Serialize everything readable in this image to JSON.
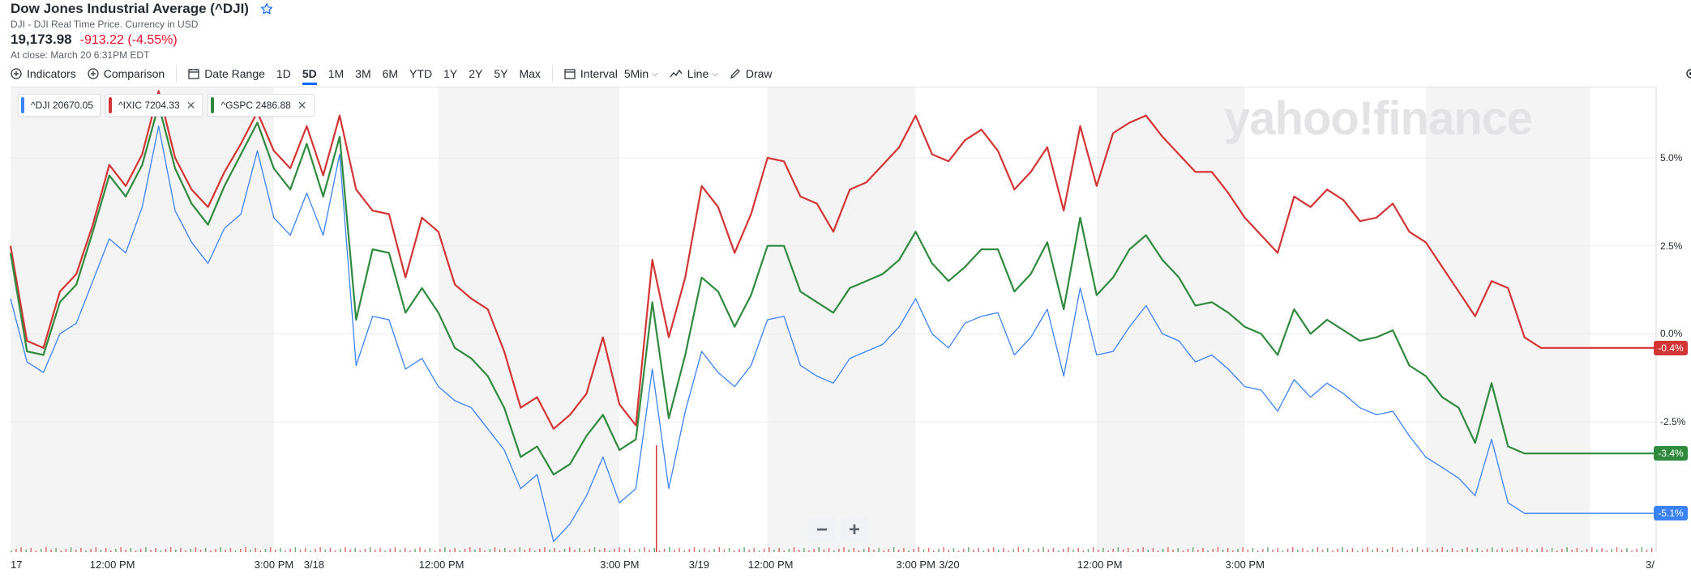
{
  "quote": {
    "title": "Dow Jones Industrial Average (^DJI)",
    "subtitle": "DJI - DJI Real Time Price. Currency in USD",
    "price": "19,173.98",
    "change": "-913.22 (-4.55%)",
    "close_note": "At close: March 20 6:31PM EDT"
  },
  "toolbar": {
    "indicators": "Indicators",
    "comparison": "Comparison",
    "date_range": "Date Range",
    "ranges": [
      "1D",
      "5D",
      "1M",
      "3M",
      "6M",
      "YTD",
      "1Y",
      "2Y",
      "5Y",
      "Max"
    ],
    "active_range": "5D",
    "interval_label": "Interval",
    "interval_value": "5Min",
    "chart_type": "Line",
    "draw": "Draw"
  },
  "legend": [
    {
      "label": "^DJI 20670.05",
      "color": "#3b82f6",
      "removable": false
    },
    {
      "label": "^IXIC 7204.33",
      "color": "#d33434",
      "removable": true
    },
    {
      "label": "^GSPC 2486.88",
      "color": "#2f8a3e",
      "removable": true
    }
  ],
  "watermark": "yahoo!finance",
  "zoom": {
    "minus": "−",
    "plus": "+"
  },
  "chart_data": {
    "type": "line",
    "x_labels": [
      "17",
      "12:00 PM",
      "3:00 PM",
      "3/18",
      "12:00 PM",
      "3:00 PM",
      "3/19",
      "12:00 PM",
      "3:00 PM",
      "3/20",
      "12:00 PM",
      "3:00 PM",
      "3/"
    ],
    "y_ticks": [
      "5.0%",
      "2.5%",
      "0.0%",
      "-2.5%"
    ],
    "ylim": [
      -6.2,
      7.0
    ],
    "shaded_sessions": [
      [
        -0.3,
        0.5
      ],
      [
        1.0,
        1.55
      ],
      [
        2.0,
        2.45
      ],
      [
        3.0,
        3.45
      ],
      [
        4.0,
        4.5
      ]
    ],
    "series": [
      {
        "name": "^IXIC",
        "color": "#d33434",
        "end_label": "-0.4%",
        "x": [
          -0.3,
          -0.25,
          -0.2,
          -0.15,
          -0.1,
          -0.05,
          0,
          0.05,
          0.1,
          0.15,
          0.2,
          0.25,
          0.3,
          0.35,
          0.4,
          0.45,
          0.5,
          0.55,
          0.6,
          0.65,
          0.7,
          0.75,
          0.8,
          0.85,
          0.9,
          0.95,
          1.0,
          1.05,
          1.1,
          1.15,
          1.2,
          1.25,
          1.3,
          1.35,
          1.4,
          1.45,
          1.5,
          1.55,
          1.6,
          1.65,
          1.7,
          1.75,
          1.8,
          1.85,
          1.9,
          1.95,
          2.0,
          2.05,
          2.1,
          2.15,
          2.2,
          2.25,
          2.3,
          2.35,
          2.4,
          2.45,
          2.5,
          2.55,
          2.6,
          2.65,
          2.7,
          2.75,
          2.8,
          2.85,
          2.9,
          2.95,
          3.0,
          3.05,
          3.1,
          3.15,
          3.2,
          3.25,
          3.3,
          3.35,
          3.4,
          3.45,
          3.5,
          3.55,
          3.6,
          3.65,
          3.7,
          3.75,
          3.8,
          3.85,
          3.9,
          3.95,
          4.0,
          4.05,
          4.1,
          4.15,
          4.2,
          4.25,
          4.3,
          4.35,
          4.4,
          4.45,
          4.5,
          4.55,
          4.6,
          4.65,
          4.7
        ],
        "y": [
          2.5,
          -0.2,
          -0.4,
          1.2,
          1.7,
          3.1,
          4.8,
          4.2,
          5.1,
          6.9,
          5.0,
          4.1,
          3.6,
          4.6,
          5.4,
          6.3,
          5.2,
          4.7,
          5.9,
          4.5,
          6.2,
          4.1,
          3.5,
          3.4,
          1.6,
          3.3,
          2.9,
          1.4,
          1.0,
          0.7,
          -0.5,
          -2.1,
          -1.8,
          -2.7,
          -2.3,
          -1.7,
          -0.1,
          -2.0,
          -2.6,
          2.1,
          -0.1,
          1.6,
          4.2,
          3.6,
          2.3,
          3.4,
          5.0,
          4.9,
          3.9,
          3.7,
          2.9,
          4.1,
          4.3,
          4.8,
          5.3,
          6.2,
          5.1,
          4.9,
          5.5,
          5.8,
          5.2,
          4.1,
          4.6,
          5.3,
          3.5,
          5.9,
          4.2,
          5.7,
          6.0,
          6.2,
          5.6,
          5.1,
          4.6,
          4.6,
          4.0,
          3.3,
          2.8,
          2.3,
          3.9,
          3.6,
          4.1,
          3.8,
          3.2,
          3.3,
          3.7,
          2.9,
          2.6,
          1.9,
          1.2,
          0.5,
          1.5,
          1.3,
          -0.1,
          -0.4,
          -0.4,
          -0.4,
          -0.4,
          -0.4,
          -0.4,
          -0.4,
          -0.4
        ],
        "y_note": "approximate"
      },
      {
        "name": "^GSPC",
        "color": "#2f8a3e",
        "end_label": "-3.4%",
        "x": [
          -0.3,
          -0.25,
          -0.2,
          -0.15,
          -0.1,
          -0.05,
          0,
          0.05,
          0.1,
          0.15,
          0.2,
          0.25,
          0.3,
          0.35,
          0.4,
          0.45,
          0.5,
          0.55,
          0.6,
          0.65,
          0.7,
          0.75,
          0.8,
          0.85,
          0.9,
          0.95,
          1.0,
          1.05,
          1.1,
          1.15,
          1.2,
          1.25,
          1.3,
          1.35,
          1.4,
          1.45,
          1.5,
          1.55,
          1.6,
          1.65,
          1.7,
          1.75,
          1.8,
          1.85,
          1.9,
          1.95,
          2.0,
          2.05,
          2.1,
          2.15,
          2.2,
          2.25,
          2.3,
          2.35,
          2.4,
          2.45,
          2.5,
          2.55,
          2.6,
          2.65,
          2.7,
          2.75,
          2.8,
          2.85,
          2.9,
          2.95,
          3.0,
          3.05,
          3.1,
          3.15,
          3.2,
          3.25,
          3.3,
          3.35,
          3.4,
          3.45,
          3.5,
          3.55,
          3.6,
          3.65,
          3.7,
          3.75,
          3.8,
          3.85,
          3.9,
          3.95,
          4.0,
          4.05,
          4.1,
          4.15,
          4.2,
          4.25,
          4.3,
          4.35,
          4.4,
          4.45,
          4.5,
          4.55,
          4.6,
          4.65,
          4.7
        ],
        "y": [
          2.3,
          -0.5,
          -0.6,
          0.9,
          1.4,
          2.9,
          4.5,
          3.9,
          4.8,
          6.5,
          4.7,
          3.7,
          3.1,
          4.2,
          5.1,
          6.0,
          4.7,
          4.1,
          5.4,
          3.9,
          5.6,
          0.4,
          2.4,
          2.3,
          0.6,
          1.3,
          0.6,
          -0.4,
          -0.7,
          -1.2,
          -2.1,
          -3.5,
          -3.2,
          -4.0,
          -3.7,
          -2.9,
          -2.3,
          -3.3,
          -3.0,
          0.9,
          -2.4,
          -0.6,
          1.6,
          1.2,
          0.2,
          1.1,
          2.5,
          2.5,
          1.2,
          0.9,
          0.6,
          1.3,
          1.5,
          1.7,
          2.1,
          2.9,
          2.0,
          1.5,
          1.9,
          2.4,
          2.4,
          1.2,
          1.7,
          2.6,
          0.7,
          3.3,
          1.1,
          1.6,
          2.4,
          2.8,
          2.1,
          1.6,
          0.8,
          0.9,
          0.6,
          0.2,
          0.0,
          -0.6,
          0.7,
          0.0,
          0.4,
          0.1,
          -0.2,
          -0.1,
          0.1,
          -0.9,
          -1.2,
          -1.8,
          -2.1,
          -3.1,
          -1.4,
          -3.2,
          -3.4,
          -3.4,
          -3.4,
          -3.4,
          -3.4,
          -3.4,
          -3.4,
          -3.4,
          -3.4
        ],
        "y_note": "approximate"
      },
      {
        "name": "^DJI",
        "color": "#3b82f6",
        "end_label": "-5.1%",
        "x": [
          -0.3,
          -0.25,
          -0.2,
          -0.15,
          -0.1,
          -0.05,
          0,
          0.05,
          0.1,
          0.15,
          0.2,
          0.25,
          0.3,
          0.35,
          0.4,
          0.45,
          0.5,
          0.55,
          0.6,
          0.65,
          0.7,
          0.75,
          0.8,
          0.85,
          0.9,
          0.95,
          1.0,
          1.05,
          1.1,
          1.15,
          1.2,
          1.25,
          1.3,
          1.35,
          1.4,
          1.45,
          1.5,
          1.55,
          1.6,
          1.65,
          1.7,
          1.75,
          1.8,
          1.85,
          1.9,
          1.95,
          2.0,
          2.05,
          2.1,
          2.15,
          2.2,
          2.25,
          2.3,
          2.35,
          2.4,
          2.45,
          2.5,
          2.55,
          2.6,
          2.65,
          2.7,
          2.75,
          2.8,
          2.85,
          2.9,
          2.95,
          3.0,
          3.05,
          3.1,
          3.15,
          3.2,
          3.25,
          3.3,
          3.35,
          3.4,
          3.45,
          3.5,
          3.55,
          3.6,
          3.65,
          3.7,
          3.75,
          3.8,
          3.85,
          3.9,
          3.95,
          4.0,
          4.05,
          4.1,
          4.15,
          4.2,
          4.25,
          4.3,
          4.35,
          4.4,
          4.45,
          4.5,
          4.55,
          4.6,
          4.65,
          4.7
        ],
        "y": [
          1.0,
          -0.8,
          -1.1,
          0.0,
          0.3,
          1.5,
          2.7,
          2.3,
          3.6,
          5.9,
          3.5,
          2.6,
          2.0,
          3.0,
          3.4,
          5.2,
          3.3,
          2.8,
          4.0,
          2.8,
          5.1,
          -0.9,
          0.5,
          0.4,
          -1.0,
          -0.7,
          -1.5,
          -1.9,
          -2.1,
          -2.7,
          -3.3,
          -4.4,
          -4.0,
          -5.9,
          -5.4,
          -4.6,
          -3.5,
          -4.8,
          -4.4,
          -1.0,
          -4.4,
          -2.2,
          -0.5,
          -1.1,
          -1.5,
          -0.9,
          0.4,
          0.5,
          -0.9,
          -1.2,
          -1.4,
          -0.7,
          -0.5,
          -0.3,
          0.2,
          1.0,
          0.0,
          -0.4,
          0.3,
          0.5,
          0.6,
          -0.6,
          -0.1,
          0.7,
          -1.2,
          1.3,
          -0.6,
          -0.5,
          0.2,
          0.8,
          0.0,
          -0.2,
          -0.8,
          -0.6,
          -1.0,
          -1.5,
          -1.6,
          -2.2,
          -1.3,
          -1.8,
          -1.4,
          -1.7,
          -2.1,
          -2.3,
          -2.2,
          -2.9,
          -3.5,
          -3.8,
          -4.1,
          -4.6,
          -3.0,
          -4.8,
          -5.1,
          -5.1,
          -5.1,
          -5.1,
          -5.1,
          -5.1,
          -5.1,
          -5.1,
          -5.1
        ],
        "y_note": "approximate"
      }
    ]
  }
}
